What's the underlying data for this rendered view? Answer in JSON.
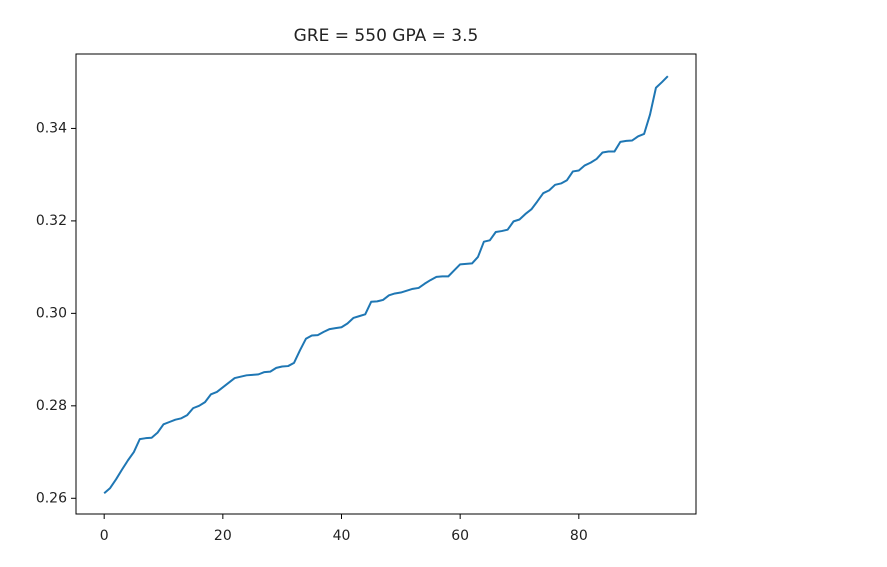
{
  "chart_data": {
    "type": "line",
    "title": "GRE = 550 GPA = 3.5",
    "x": [
      0,
      1,
      2,
      3,
      4,
      5,
      6,
      7,
      8,
      9,
      10,
      11,
      12,
      13,
      14,
      15,
      16,
      17,
      18,
      19,
      20,
      21,
      22,
      23,
      24,
      25,
      26,
      27,
      28,
      29,
      30,
      31,
      32,
      33,
      34,
      35,
      36,
      37,
      38,
      39,
      40,
      41,
      42,
      43,
      44,
      45,
      46,
      47,
      48,
      49,
      50,
      51,
      52,
      53,
      54,
      55,
      56,
      57,
      58,
      59,
      60,
      61,
      62,
      63,
      64,
      65,
      66,
      67,
      68,
      69,
      70,
      71,
      72,
      73,
      74,
      75,
      76,
      77,
      78,
      79,
      80,
      81,
      82,
      83,
      84,
      85,
      86,
      87,
      88,
      89,
      90,
      91,
      92,
      93,
      94,
      95
    ],
    "series": [
      {
        "color": "#1f77b4",
        "values": [
          0.2611,
          0.2622,
          0.2641,
          0.2662,
          0.2682,
          0.27,
          0.2728,
          0.273,
          0.2731,
          0.2742,
          0.276,
          0.2765,
          0.277,
          0.2773,
          0.278,
          0.2795,
          0.28,
          0.2808,
          0.2825,
          0.283,
          0.284,
          0.285,
          0.286,
          0.2863,
          0.2866,
          0.2867,
          0.2868,
          0.2873,
          0.2874,
          0.2882,
          0.2885,
          0.2886,
          0.2893,
          0.292,
          0.2945,
          0.2952,
          0.2953,
          0.296,
          0.2966,
          0.2968,
          0.297,
          0.2978,
          0.299,
          0.2994,
          0.2998,
          0.3025,
          0.3026,
          0.3029,
          0.3039,
          0.3043,
          0.3045,
          0.3049,
          0.3053,
          0.3055,
          0.3064,
          0.3072,
          0.3079,
          0.308,
          0.308,
          0.3093,
          0.3106,
          0.3107,
          0.3108,
          0.3122,
          0.3155,
          0.3158,
          0.3176,
          0.3178,
          0.3181,
          0.3199,
          0.3203,
          0.3215,
          0.3225,
          0.3242,
          0.326,
          0.3266,
          0.3278,
          0.3281,
          0.3288,
          0.3307,
          0.3309,
          0.332,
          0.3326,
          0.3334,
          0.3348,
          0.335,
          0.335,
          0.3371,
          0.3373,
          0.3374,
          0.3383,
          0.3388,
          0.343,
          0.3488,
          0.35,
          0.3513
        ]
      }
    ],
    "xlim": [
      -4.75,
      99.75
    ],
    "xticks": [
      0,
      20,
      40,
      60,
      80
    ],
    "ylim": [
      0.2566,
      0.3561
    ],
    "yticks": [
      0.26,
      0.28,
      {
        "value": 0.3,
        "label": "0.30"
      },
      0.32,
      0.34
    ]
  }
}
